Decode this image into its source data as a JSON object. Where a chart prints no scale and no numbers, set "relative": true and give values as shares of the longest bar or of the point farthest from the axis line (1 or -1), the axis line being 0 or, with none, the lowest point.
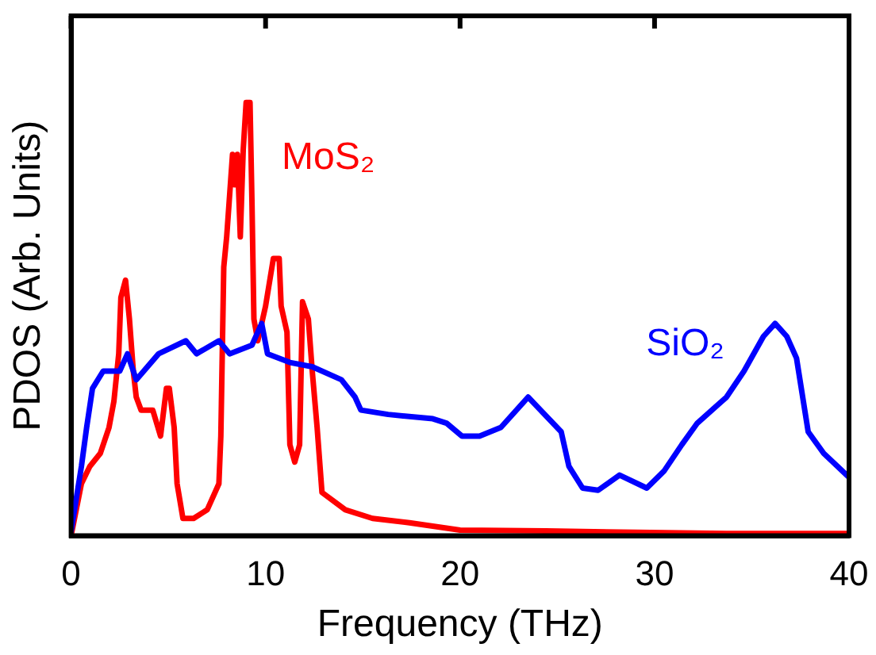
{
  "chart_data": {
    "type": "line",
    "xlabel": "Frequency (THz)",
    "ylabel": "PDOS (Arb. Units)",
    "relative": true,
    "xlim": [
      0,
      40
    ],
    "xticks": [
      0,
      10,
      20,
      30,
      40
    ],
    "grid": false,
    "legend": false,
    "marker": "none",
    "line_style": "solid",
    "series": [
      {
        "name": "MoS₂",
        "color": "#ff0000",
        "x": [
          0,
          0.53,
          0.96,
          1.5,
          1.95,
          2.2,
          2.45,
          2.56,
          2.8,
          3.0,
          3.2,
          3.35,
          3.6,
          4.2,
          4.6,
          4.9,
          5.05,
          5.3,
          5.45,
          5.75,
          6.3,
          7.0,
          7.6,
          7.7,
          7.85,
          8.0,
          8.3,
          8.4,
          8.55,
          8.7,
          8.85,
          9.0,
          9.2,
          9.3,
          9.4,
          9.6,
          10.0,
          10.4,
          10.7,
          10.8,
          11.1,
          11.25,
          11.5,
          11.75,
          11.9,
          12.2,
          12.4,
          12.65,
          12.9,
          14.1,
          15.5,
          17.4,
          20,
          24.4,
          33.7,
          40
        ],
        "values": [
          0,
          0.12,
          0.16,
          0.19,
          0.25,
          0.31,
          0.42,
          0.55,
          0.59,
          0.5,
          0.38,
          0.32,
          0.29,
          0.29,
          0.23,
          0.34,
          0.34,
          0.25,
          0.12,
          0.04,
          0.04,
          0.06,
          0.12,
          0.23,
          0.62,
          0.69,
          0.88,
          0.81,
          0.88,
          0.69,
          0.89,
          1,
          1,
          0.77,
          0.5,
          0.45,
          0.53,
          0.64,
          0.64,
          0.53,
          0.47,
          0.21,
          0.17,
          0.21,
          0.54,
          0.5,
          0.38,
          0.25,
          0.1,
          0.06,
          0.04,
          0.03,
          0.013,
          0.011,
          0.005,
          0.005
        ]
      },
      {
        "name": "SiO₂",
        "color": "#0000ff",
        "x": [
          0,
          0.53,
          0.8,
          1.1,
          1.65,
          2.5,
          2.9,
          3.35,
          4.5,
          5.9,
          6.45,
          7.6,
          8.15,
          9.3,
          9.8,
          10.1,
          11.25,
          12.4,
          13.9,
          14.6,
          14.9,
          16.3,
          18.6,
          19.3,
          20.1,
          21.0,
          22.1,
          23.5,
          25.2,
          25.6,
          26.3,
          27.1,
          28.2,
          29.6,
          30.5,
          31.4,
          32.2,
          33.7,
          34.6,
          35.6,
          36.2,
          36.8,
          37.3,
          37.9,
          38.7,
          40
        ],
        "values": [
          0.01,
          0.16,
          0.25,
          0.34,
          0.38,
          0.38,
          0.42,
          0.36,
          0.42,
          0.45,
          0.42,
          0.45,
          0.42,
          0.44,
          0.49,
          0.42,
          0.4,
          0.39,
          0.36,
          0.32,
          0.29,
          0.28,
          0.27,
          0.26,
          0.23,
          0.23,
          0.25,
          0.32,
          0.24,
          0.16,
          0.11,
          0.105,
          0.14,
          0.11,
          0.15,
          0.21,
          0.26,
          0.32,
          0.38,
          0.46,
          0.49,
          0.46,
          0.41,
          0.24,
          0.19,
          0.135
        ]
      }
    ]
  }
}
